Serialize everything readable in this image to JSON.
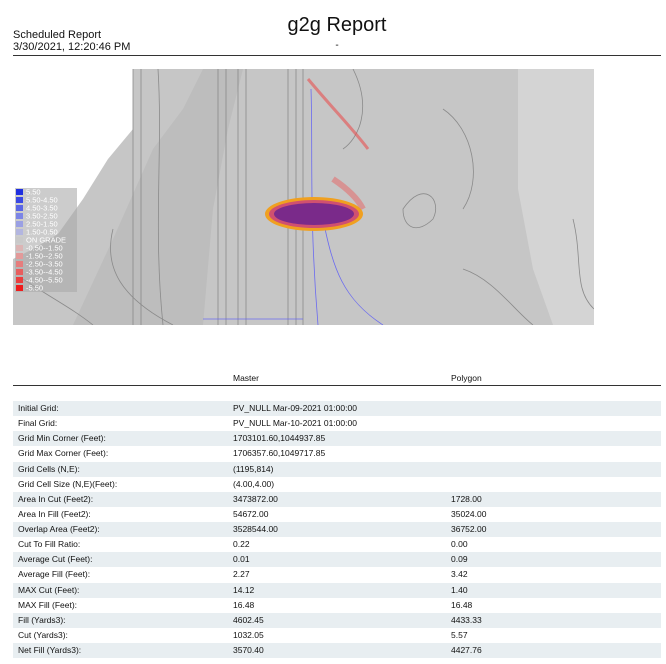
{
  "header": {
    "left_title": "Scheduled Report",
    "timestamp": "3/30/2021, 12:20:46 PM",
    "title": "g2g Report",
    "subtitle": "-"
  },
  "legend": [
    {
      "label": "5.50",
      "color": "#1f2fe0"
    },
    {
      "label": "5.50-4.50",
      "color": "#3a48e4"
    },
    {
      "label": "4.50-3.50",
      "color": "#5a66e6"
    },
    {
      "label": "3.50-2.50",
      "color": "#7c85e6"
    },
    {
      "label": "2.50-1.50",
      "color": "#9aa0e4"
    },
    {
      "label": "1.50-0.50",
      "color": "#b3b6e0"
    },
    {
      "label": "ON GRADE",
      "color": "#c9c9c9"
    },
    {
      "label": "-0.50--1.50",
      "color": "#dcb4b4"
    },
    {
      "label": "-1.50--2.50",
      "color": "#e29a9a"
    },
    {
      "label": "-2.50--3.50",
      "color": "#e67d7d"
    },
    {
      "label": "-3.50--4.50",
      "color": "#e85e5e"
    },
    {
      "label": "-4.50--5.50",
      "color": "#ea3e3e"
    },
    {
      "label": "-5.50",
      "color": "#ee1c1c"
    }
  ],
  "table": {
    "columns": [
      "Master",
      "Polygon"
    ],
    "rows": [
      {
        "label": "Initial Grid:",
        "master": "PV_NULL Mar-09-2021 01:00:00"
      },
      {
        "label": "Final Grid:",
        "master": "PV_NULL Mar-10-2021 01:00:00"
      },
      {
        "label": "Grid Min Corner (Feet):",
        "master": "1703101.60,1044937.85"
      },
      {
        "label": "Grid Max Corner (Feet):",
        "master": "1706357.60,1049717.85"
      },
      {
        "label": "Grid Cells (N,E):",
        "master": "(1195,814)"
      },
      {
        "label": "Grid Cell Size (N,E)(Feet):",
        "master": "(4.00,4.00)"
      },
      {
        "label": "Area In Cut (Feet2):",
        "master": "3473872.00",
        "polygon": "1728.00"
      },
      {
        "label": "Area In Fill (Feet2):",
        "master": "54672.00",
        "polygon": "35024.00"
      },
      {
        "label": "Overlap Area (Feet2):",
        "master": "3528544.00",
        "polygon": "36752.00"
      },
      {
        "label": "Cut To Fill Ratio:",
        "master": "0.22",
        "polygon": "0.00"
      },
      {
        "label": "Average Cut (Feet):",
        "master": "0.01",
        "polygon": "0.09"
      },
      {
        "label": "Average Fill (Feet):",
        "master": "2.27",
        "polygon": "3.42"
      },
      {
        "label": "MAX Cut (Feet):",
        "master": "14.12",
        "polygon": "1.40"
      },
      {
        "label": "MAX Fill (Feet):",
        "master": "16.48",
        "polygon": "16.48"
      },
      {
        "label": "Fill (Yards3):",
        "master": "4602.45",
        "polygon": "4433.33"
      },
      {
        "label": "Cut (Yards3):",
        "master": "1032.05",
        "polygon": "5.57"
      },
      {
        "label": "Net Fill (Yards3):",
        "master": "3570.40",
        "polygon": "4427.76"
      }
    ]
  }
}
